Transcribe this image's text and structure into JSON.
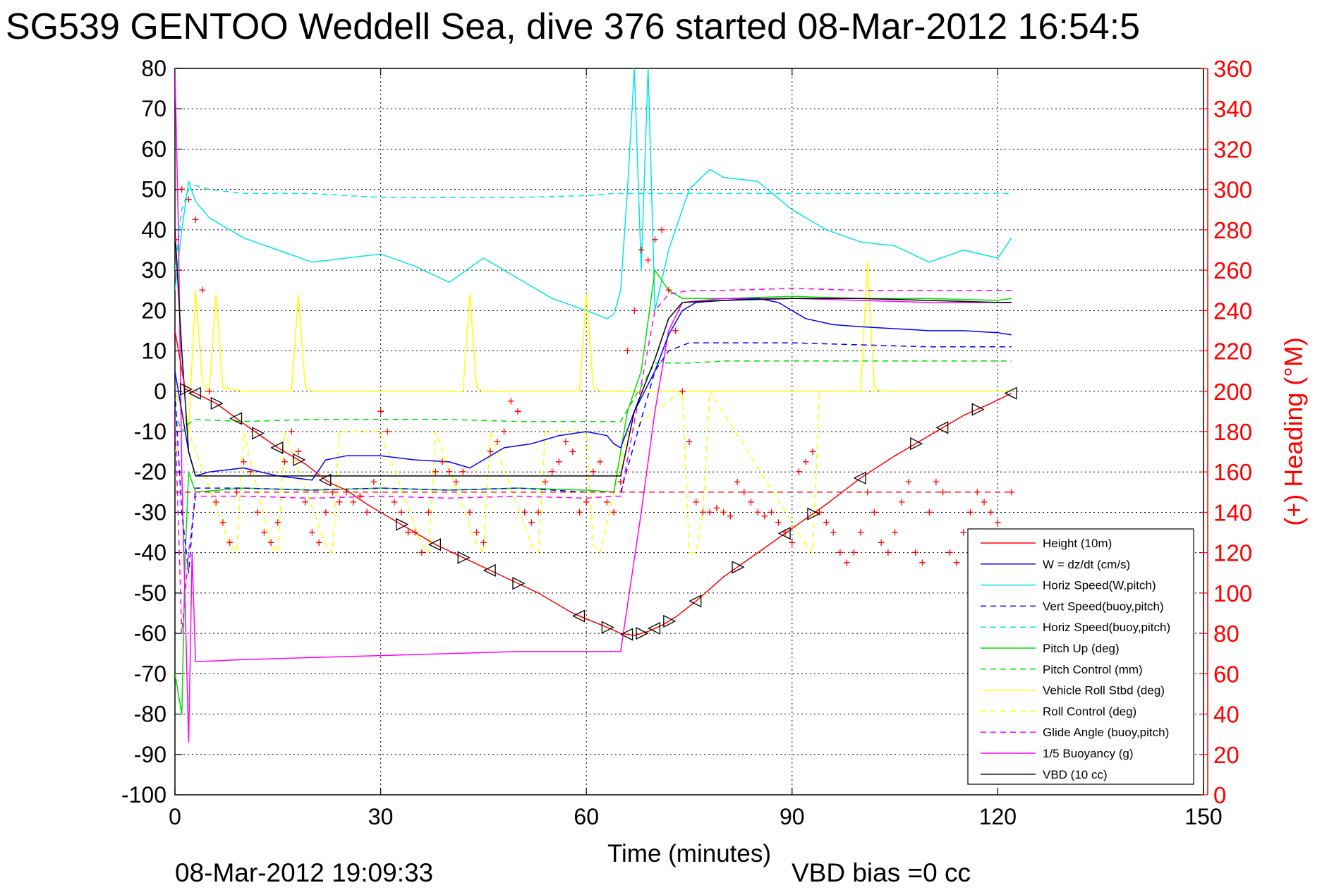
{
  "title": "SG539 GENTOO Weddell Sea, dive 376 started 08-Mar-2012 16:54:5",
  "footer": {
    "timestamp": "08-Mar-2012 19:09:33",
    "vbd_bias": "VBD bias =0 cc"
  },
  "colors": {
    "height": "#ff0000",
    "w": "#0000ff",
    "horiz_speed": "#00e5e5",
    "pitch": "#00dd00",
    "roll": "#ffff00",
    "glide": "#ff00ff",
    "vbd": "#000000",
    "heading": "#ff0000"
  },
  "chart_data": {
    "type": "line",
    "xlabel": "Time (minutes)",
    "ylabel_right": "(+) Heading (°M)",
    "xlim": [
      0,
      150
    ],
    "ylim": [
      -100,
      80
    ],
    "ylim_right": [
      0,
      360
    ],
    "xticks": [
      "0",
      "30",
      "60",
      "90",
      "120",
      "150"
    ],
    "yticks_left": [
      "80",
      "70",
      "60",
      "50",
      "40",
      "30",
      "20",
      "10",
      "0",
      "-10",
      "-20",
      "-30",
      "-40",
      "-50",
      "-60",
      "-70",
      "-80",
      "-90",
      "-100"
    ],
    "yticks_right": [
      "360",
      "340",
      "320",
      "300",
      "280",
      "260",
      "240",
      "220",
      "200",
      "180",
      "160",
      "140",
      "120",
      "100",
      "80",
      "60",
      "40",
      "20",
      "0"
    ],
    "grid": true,
    "legend_position": "bottom-right",
    "series": [
      {
        "name": "Height (10m)",
        "style": "solid",
        "color_key": "height",
        "x": [
          0,
          1.5,
          3,
          6,
          10,
          15,
          19,
          22,
          23,
          25,
          28,
          33,
          38,
          43,
          48,
          53,
          58,
          63,
          65,
          67,
          69,
          71,
          73,
          76,
          80,
          85,
          90,
          95,
          100,
          105,
          110,
          115,
          119,
          122
        ],
        "y": [
          15,
          0.5,
          -0.5,
          -3,
          -8,
          -14,
          -18,
          -22,
          -23,
          -24.5,
          -28,
          -33,
          -38,
          -42,
          -46,
          -50,
          -55,
          -58.5,
          -60,
          -60.5,
          -59.5,
          -58,
          -56,
          -52,
          -46,
          -40,
          -34,
          -28,
          -21.5,
          -16,
          -11,
          -6,
          -3,
          -0.5
        ]
      },
      {
        "name": "W = dz/dt (cm/s)",
        "style": "solid",
        "color_key": "w",
        "x": [
          0,
          1,
          2,
          3,
          5,
          10,
          15,
          20,
          22,
          25,
          30,
          35,
          40,
          43,
          45,
          48,
          52,
          56,
          60,
          63,
          64,
          65,
          67,
          70,
          72,
          74,
          76,
          80,
          85,
          88,
          92,
          96,
          100,
          105,
          110,
          115,
          120,
          122
        ],
        "y": [
          5,
          -5,
          -15,
          -21,
          -20,
          -19,
          -21,
          -22,
          -17,
          -16,
          -16,
          -17,
          -17.5,
          -19,
          -17,
          -14,
          -13,
          -11,
          -10,
          -11,
          -13,
          -14,
          -5,
          5,
          14,
          20,
          22,
          22.5,
          23,
          22,
          18,
          16.5,
          16,
          15.5,
          15,
          15,
          14.5,
          14
        ]
      },
      {
        "name": "Horiz Speed(W,pitch)",
        "style": "solid",
        "color_key": "horiz_speed",
        "x": [
          0,
          1,
          2,
          3,
          5,
          8,
          10,
          15,
          20,
          25,
          30,
          35,
          40,
          45,
          50,
          55,
          60,
          63,
          64,
          65,
          66,
          67,
          68,
          69,
          70,
          72,
          75,
          78,
          80,
          85,
          90,
          95,
          100,
          105,
          110,
          115,
          120,
          122
        ],
        "y": [
          25,
          40,
          52,
          47,
          43,
          40,
          38,
          35,
          32,
          33,
          34,
          31,
          27,
          33,
          28,
          23,
          20,
          18,
          19,
          25,
          50,
          80,
          30,
          80,
          20,
          35,
          50,
          55,
          53,
          52,
          45,
          40,
          37,
          36,
          32,
          35,
          33,
          38
        ]
      },
      {
        "name": "Vert Speed(buoy,pitch)",
        "style": "dash",
        "color_key": "w",
        "x": [
          0,
          1,
          2,
          3,
          10,
          20,
          30,
          40,
          50,
          60,
          64,
          65,
          70,
          72,
          75,
          80,
          90,
          100,
          110,
          120,
          122
        ],
        "y": [
          0,
          -30,
          -45,
          -24,
          -24,
          -24.5,
          -24,
          -24.5,
          -24,
          -25,
          -25,
          -25,
          5,
          10,
          12,
          12,
          12,
          11.5,
          11,
          11,
          11
        ]
      },
      {
        "name": "Horiz Speed(buoy,pitch)",
        "style": "dash",
        "color_key": "horiz_speed",
        "x": [
          0,
          1,
          2,
          3,
          5,
          10,
          20,
          30,
          40,
          50,
          60,
          64,
          65,
          70,
          75,
          80,
          90,
          100,
          110,
          120,
          122
        ],
        "y": [
          30,
          45,
          50,
          51,
          50,
          49,
          49,
          48,
          48,
          48,
          48.5,
          49,
          49,
          49,
          49,
          49,
          49,
          49,
          49,
          49,
          49
        ]
      },
      {
        "name": "Pitch Up (deg)",
        "style": "solid",
        "color_key": "pitch",
        "x": [
          0,
          1,
          1.5,
          2,
          3,
          10,
          20,
          30,
          40,
          50,
          60,
          64,
          66,
          68,
          70,
          72,
          74,
          80,
          90,
          100,
          110,
          120,
          122
        ],
        "y": [
          -70,
          -80,
          -40,
          -20,
          -25,
          -24,
          -24.5,
          -24,
          -24.5,
          -24,
          -24.5,
          -25,
          -5,
          5,
          30,
          25,
          23,
          23,
          23.5,
          23,
          23,
          22.5,
          23
        ]
      },
      {
        "name": "Pitch Control (mm)",
        "style": "dash",
        "color_key": "pitch",
        "x": [
          0,
          1,
          2,
          3,
          10,
          20,
          30,
          40,
          50,
          60,
          64,
          65,
          70,
          72,
          75,
          80,
          90,
          100,
          110,
          120,
          122
        ],
        "y": [
          -5,
          -10,
          -8,
          -7,
          -7.5,
          -7,
          -7,
          -7,
          -7.5,
          -7.5,
          -7.5,
          -7.5,
          7,
          7,
          7,
          7.5,
          7.5,
          7.5,
          7.5,
          7.5,
          7.5
        ]
      },
      {
        "name": "Vehicle Roll Stbd (deg)",
        "style": "solid",
        "color_key": "roll",
        "x": [
          0,
          2,
          3,
          4,
          5,
          6,
          7,
          10,
          17,
          18,
          19,
          20,
          25,
          35,
          42,
          43,
          44,
          45,
          55,
          59,
          60,
          61,
          62,
          65,
          72,
          75,
          80,
          90,
          100,
          101,
          102,
          103,
          110,
          120,
          122
        ],
        "y": [
          0,
          -10,
          25,
          2,
          0,
          24,
          1,
          0,
          0,
          24,
          1,
          0,
          0,
          0,
          0,
          24,
          1,
          0,
          0,
          0,
          24,
          1,
          0,
          0,
          0,
          0,
          0,
          0,
          0,
          32,
          1,
          0,
          0,
          0,
          0
        ]
      },
      {
        "name": "Roll Control (deg)",
        "style": "dash",
        "color_key": "roll",
        "x": [
          0,
          2,
          8,
          9,
          10,
          14,
          15,
          16,
          22,
          23,
          24,
          30,
          36,
          37,
          38,
          44,
          45,
          46,
          52,
          53,
          54,
          60,
          61,
          62,
          66,
          74,
          75,
          76,
          77,
          78,
          92,
          93,
          94,
          122
        ],
        "y": [
          -15,
          -10,
          -38,
          -40,
          -10,
          -38,
          -40,
          -10,
          -38,
          -40,
          -10,
          -10,
          -38,
          -40,
          -10,
          -38,
          -40,
          -10,
          -38,
          -40,
          -10,
          -10,
          -38,
          -40,
          -10,
          0,
          -40,
          -40,
          -30,
          0,
          -38,
          -40,
          0,
          0
        ]
      },
      {
        "name": "Glide Angle (buoy,pitch)",
        "style": "dash",
        "color_key": "glide",
        "x": [
          0,
          1,
          2,
          3,
          10,
          20,
          30,
          40,
          50,
          60,
          64,
          65,
          70,
          72,
          75,
          80,
          90,
          100,
          110,
          120,
          122
        ],
        "y": [
          -5,
          -60,
          -40,
          -26,
          -26,
          -26.5,
          -26,
          -26.5,
          -26,
          -26.5,
          -26,
          -26,
          20,
          24,
          25,
          25,
          25.5,
          25,
          25,
          25,
          25
        ]
      },
      {
        "name": "1/5 Buoyancy (g)",
        "style": "solid",
        "color_key": "glide",
        "x": [
          0,
          0.5,
          1,
          2,
          2.5,
          3,
          10,
          20,
          30,
          40,
          50,
          60,
          65,
          68,
          70,
          72,
          74,
          80,
          90,
          100,
          110,
          120,
          122
        ],
        "y": [
          80,
          40,
          -20,
          -87,
          -40,
          -67,
          -66.5,
          -66,
          -65.5,
          -65,
          -64.5,
          -64.5,
          -64.5,
          -30,
          -5,
          15,
          22,
          23,
          23,
          22.5,
          22,
          22,
          22
        ]
      },
      {
        "name": "VBD (10 cc)",
        "style": "solid",
        "color_key": "vbd",
        "x": [
          0,
          1,
          2,
          3,
          5,
          10,
          20,
          30,
          40,
          50,
          60,
          64,
          65,
          67,
          70,
          72,
          74,
          80,
          90,
          100,
          110,
          120,
          122
        ],
        "y": [
          40,
          10,
          -15,
          -21,
          -21,
          -21,
          -21,
          -21,
          -21,
          -21,
          -21,
          -21,
          -21,
          -5,
          8,
          18,
          22,
          22.5,
          23,
          23,
          22.5,
          22,
          22
        ]
      }
    ],
    "reference_lines": [
      {
        "axis": "right",
        "y": 150,
        "style": "dash",
        "color_key": "heading"
      }
    ],
    "markers": {
      "on": "Height (10m)",
      "symbol": "triangle",
      "x": [
        1.5,
        3,
        6,
        9,
        12,
        15,
        18,
        22,
        33,
        38,
        42,
        46,
        50,
        59,
        63,
        66,
        68,
        70,
        72,
        76,
        82,
        89,
        93,
        100,
        108,
        112,
        117,
        122
      ]
    },
    "heading_points": {
      "axis": "right",
      "symbol": "+",
      "color_key": "heading",
      "x": [
        0,
        1,
        2,
        3,
        4,
        5,
        6,
        7,
        8,
        9,
        10,
        11,
        12,
        13,
        14,
        15,
        16,
        17,
        18,
        19,
        20,
        21,
        22,
        23,
        24,
        25,
        26,
        27,
        28,
        29,
        30,
        31,
        32,
        33,
        34,
        35,
        36,
        37,
        38,
        39,
        40,
        41,
        42,
        43,
        44,
        45,
        46,
        47,
        48,
        49,
        50,
        51,
        52,
        53,
        54,
        55,
        56,
        57,
        58,
        59,
        60,
        61,
        62,
        63,
        64,
        65,
        66,
        67,
        68,
        69,
        70,
        71,
        72,
        73,
        74,
        75,
        76,
        77,
        78,
        79,
        80,
        81,
        82,
        83,
        84,
        85,
        86,
        87,
        88,
        89,
        90,
        91,
        92,
        93,
        94,
        95,
        96,
        97,
        98,
        99,
        100,
        101,
        102,
        103,
        104,
        105,
        106,
        107,
        108,
        109,
        110,
        111,
        112,
        113,
        114,
        115,
        116,
        117,
        118,
        119,
        120,
        121,
        122
      ],
      "y": [
        275,
        300,
        295,
        285,
        250,
        200,
        145,
        135,
        125,
        150,
        165,
        160,
        140,
        130,
        125,
        135,
        165,
        180,
        170,
        145,
        130,
        125,
        140,
        150,
        145,
        150,
        145,
        148,
        140,
        155,
        190,
        180,
        145,
        140,
        130,
        130,
        120,
        140,
        160,
        165,
        160,
        155,
        160,
        140,
        130,
        125,
        170,
        175,
        180,
        195,
        190,
        140,
        135,
        140,
        155,
        160,
        165,
        175,
        170,
        140,
        145,
        160,
        165,
        145,
        140,
        155,
        220,
        240,
        270,
        265,
        275,
        280,
        250,
        230,
        200,
        175,
        145,
        140,
        140,
        142,
        140,
        138,
        155,
        150,
        145,
        140,
        138,
        140,
        135,
        130,
        125,
        160,
        165,
        170,
        140,
        135,
        130,
        120,
        115,
        120,
        130,
        150,
        140,
        125,
        120,
        130,
        145,
        155,
        120,
        115,
        140,
        155,
        150,
        120,
        115,
        130,
        140,
        150,
        145,
        140,
        135,
        125,
        150
      ]
    }
  }
}
